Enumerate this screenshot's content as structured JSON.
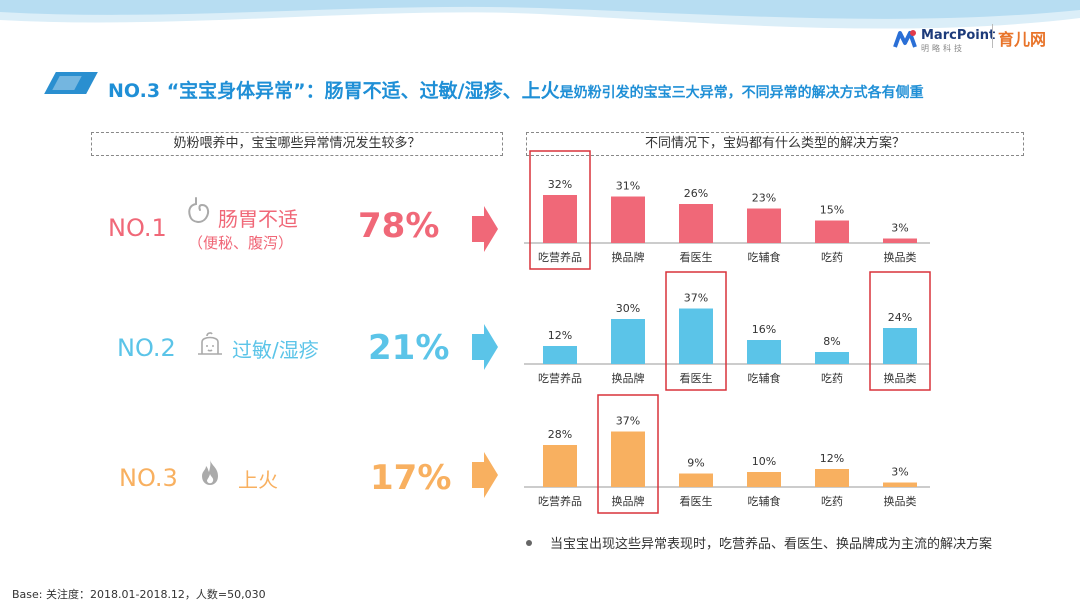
{
  "header": {
    "brand_name": "MarcPoint",
    "brand_sub": "明略科技",
    "partner_name": "育儿网",
    "title_main": "NO.3 “宝宝身体异常”：肠胃不适、过敏/湿疹、上火",
    "title_rest": "是奶粉引发的宝宝三大异常，不同异常的解决方式各有侧重"
  },
  "questions": {
    "left": "奶粉喂养中，宝宝哪些异常情况发生较多？",
    "right": "不同情况下，宝妈都有什么类型的解决方案？"
  },
  "colors": {
    "red": "#f06878",
    "blue": "#5bc4e8",
    "orange": "#f8b060",
    "highlight": "#d9323a"
  },
  "rows": [
    {
      "rank": "NO.1",
      "issue": "肠胃不适",
      "issue_sub": "（便秘、腹泻）",
      "icon": "stomach-icon",
      "percent": "78%",
      "color": "red"
    },
    {
      "rank": "NO.2",
      "issue": "过敏/湿疹",
      "issue_sub": "",
      "icon": "baby-face-icon",
      "percent": "21%",
      "color": "blue"
    },
    {
      "rank": "NO.3",
      "issue": "上火",
      "issue_sub": "",
      "icon": "fire-icon",
      "percent": "17%",
      "color": "orange"
    }
  ],
  "chart_data": [
    {
      "type": "bar",
      "title": "",
      "categories": [
        "吃营养品",
        "换品牌",
        "看医生",
        "吃辅食",
        "吃药",
        "换品类"
      ],
      "values": [
        32,
        31,
        26,
        23,
        15,
        3
      ],
      "labels": [
        "32%",
        "31%",
        "26%",
        "23%",
        "15%",
        "3%"
      ],
      "ylim": [
        0,
        40
      ],
      "highlighted": [
        "吃营养品"
      ]
    },
    {
      "type": "bar",
      "title": "",
      "categories": [
        "吃营养品",
        "换品牌",
        "看医生",
        "吃辅食",
        "吃药",
        "换品类"
      ],
      "values": [
        12,
        30,
        37,
        16,
        8,
        24
      ],
      "labels": [
        "12%",
        "30%",
        "37%",
        "16%",
        "8%",
        "24%"
      ],
      "ylim": [
        0,
        40
      ],
      "highlighted": [
        "看医生",
        "换品类"
      ]
    },
    {
      "type": "bar",
      "title": "",
      "categories": [
        "吃营养品",
        "换品牌",
        "看医生",
        "吃辅食",
        "吃药",
        "换品类"
      ],
      "values": [
        28,
        37,
        9,
        10,
        12,
        3
      ],
      "labels": [
        "28%",
        "37%",
        "9%",
        "10%",
        "12%",
        "3%"
      ],
      "ylim": [
        0,
        40
      ],
      "highlighted": [
        "换品牌"
      ]
    }
  ],
  "note": "当宝宝出现这些异常表现时，吃营养品、看医生、换品牌成为主流的解决方案",
  "base": "Base: 关注度：2018.01-2018.12，人数=50,030"
}
